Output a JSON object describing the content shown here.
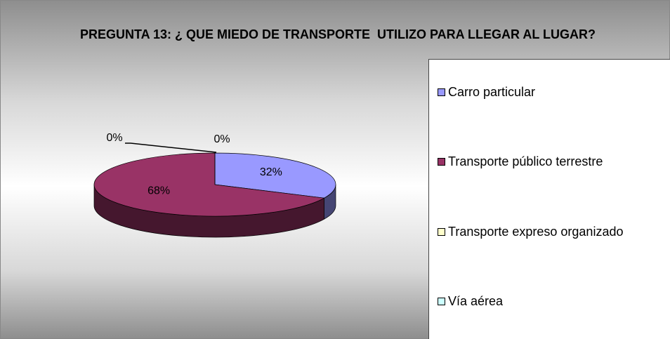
{
  "chart_data": {
    "type": "pie",
    "title": "PREGUNTA 13: ¿ QUE MIEDO DE TRANSPORTE  UTILIZO PARA LLEGAR AL LUGAR?",
    "categories": [
      "Carro particular",
      "Transporte público terrestre",
      "Transporte expreso organizado",
      "Vía aérea"
    ],
    "values": [
      32,
      68,
      0,
      0
    ],
    "value_labels": [
      "32%",
      "68%",
      "0%",
      "0%"
    ],
    "colors": [
      "#9999ff",
      "#993366",
      "#ffffcc",
      "#ccffff"
    ],
    "legend": "right"
  }
}
